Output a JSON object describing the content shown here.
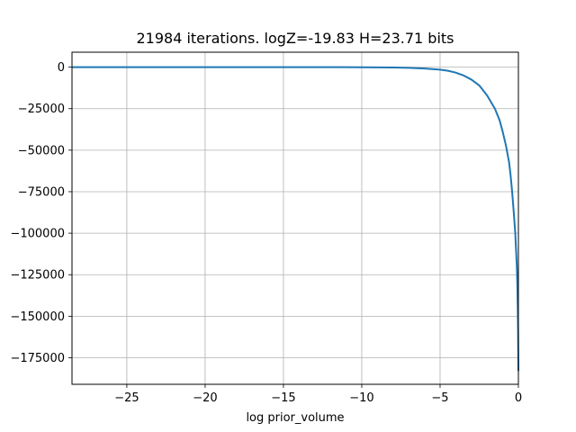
{
  "chart_data": {
    "type": "line",
    "title": "21984 iterations. logZ=-19.83 H=23.71 bits",
    "xlabel": "log prior_volume",
    "ylabel": "",
    "xlim": [
      -28.5,
      0
    ],
    "ylim": [
      -191000,
      9000
    ],
    "grid": true,
    "x_ticks": [
      {
        "value": -25,
        "label": "−25"
      },
      {
        "value": -20,
        "label": "−20"
      },
      {
        "value": -15,
        "label": "−15"
      },
      {
        "value": -10,
        "label": "−10"
      },
      {
        "value": -5,
        "label": "−5"
      },
      {
        "value": 0,
        "label": "0"
      }
    ],
    "y_ticks": [
      {
        "value": 0,
        "label": "0"
      },
      {
        "value": -25000,
        "label": "−25000"
      },
      {
        "value": -50000,
        "label": "−50000"
      },
      {
        "value": -75000,
        "label": "−75000"
      },
      {
        "value": -100000,
        "label": "−100000"
      },
      {
        "value": -125000,
        "label": "−125000"
      },
      {
        "value": -150000,
        "label": "−150000"
      },
      {
        "value": -175000,
        "label": "−175000"
      }
    ],
    "series": [
      {
        "color": "#1f77b4",
        "x": [
          -28.5,
          -25,
          -20,
          -15,
          -12,
          -10,
          -8,
          -7,
          -6,
          -5,
          -4.5,
          -4,
          -3.5,
          -3,
          -2.5,
          -2,
          -1.5,
          -1.2,
          -1.0,
          -0.8,
          -0.6,
          -0.5,
          -0.4,
          -0.3,
          -0.2,
          -0.15,
          -0.1,
          -0.07,
          -0.04,
          -0.02,
          0
        ],
        "y": [
          0,
          0,
          0,
          0,
          -20,
          -50,
          -200,
          -400,
          -800,
          -1500,
          -2200,
          -3300,
          -5000,
          -7500,
          -11000,
          -17000,
          -25000,
          -32000,
          -39000,
          -47000,
          -57000,
          -65000,
          -75000,
          -87000,
          -100000,
          -110000,
          -120000,
          -130000,
          -145000,
          -160000,
          -183000
        ]
      }
    ]
  }
}
